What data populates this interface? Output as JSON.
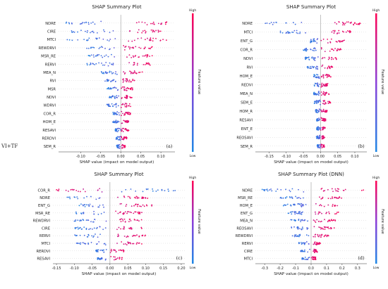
{
  "figure": {
    "side_label": "VI+TF"
  },
  "colors": {
    "low": "#1e88e5",
    "high": "#ff0052",
    "axis": "#333333",
    "zero_line": "#999999",
    "guide": "#cccccc"
  },
  "chart_data": [
    {
      "type": "scatter",
      "title": "SHAP Summary Plot",
      "panel_label": "(a)",
      "xlabel": "SHAP value (impact on model output)",
      "colorbar": {
        "label": "Feature value",
        "high": "High",
        "low": "Low"
      },
      "xlim": [
        -0.155,
        0.135
      ],
      "xticks": [
        -0.1,
        -0.05,
        0.0,
        0.05,
        0.1
      ],
      "xtick_labels": [
        "-0.10",
        "-0.05",
        "0.00",
        "0.05",
        "0.10"
      ],
      "features": [
        {
          "name": "NDRE",
          "neg": [
            -0.14,
            -0.02
          ],
          "pos": [
            0.02,
            0.125
          ]
        },
        {
          "name": "CIRE",
          "neg": [
            -0.13,
            -0.015
          ],
          "pos": [
            0.015,
            0.1
          ]
        },
        {
          "name": "MTCI",
          "neg": [
            -0.135,
            -0.01
          ],
          "pos": [
            0.01,
            0.115
          ]
        },
        {
          "name": "REWDRVI",
          "neg": [
            -0.085,
            -0.01
          ],
          "pos": [
            0.005,
            0.08
          ]
        },
        {
          "name": "MSR_RE",
          "neg": [
            -0.085,
            -0.01
          ],
          "pos": [
            0.005,
            0.08
          ]
        },
        {
          "name": "RERVI",
          "neg": [
            -0.09,
            -0.01
          ],
          "pos": [
            0.005,
            0.075
          ]
        },
        {
          "name": "MEA_N",
          "neg": [
            -0.05,
            -0.005
          ],
          "pos": [
            0.0,
            0.055
          ]
        },
        {
          "name": "RVI",
          "neg": [
            -0.04,
            -0.005
          ],
          "pos": [
            0.0,
            0.035
          ]
        },
        {
          "name": "MSR",
          "neg": [
            -0.035,
            -0.005
          ],
          "pos": [
            0.0,
            0.03
          ]
        },
        {
          "name": "NDVI",
          "neg": [
            -0.03,
            -0.005
          ],
          "pos": [
            0.0,
            0.03
          ]
        },
        {
          "name": "WDRVI",
          "neg": [
            -0.035,
            -0.005
          ],
          "pos": [
            0.0,
            0.025
          ]
        },
        {
          "name": "COR_R",
          "neg": [
            -0.02,
            0.0
          ],
          "pos": [
            0.0,
            0.025
          ]
        },
        {
          "name": "HOM_E",
          "neg": [
            -0.02,
            0.0
          ],
          "pos": [
            0.0,
            0.02
          ]
        },
        {
          "name": "RESAVI",
          "neg": [
            -0.015,
            0.0
          ],
          "pos": [
            0.0,
            0.02
          ]
        },
        {
          "name": "RERDVI",
          "neg": [
            -0.012,
            0.0
          ],
          "pos": [
            0.0,
            0.015
          ]
        },
        {
          "name": "SEM_R",
          "neg": [
            -0.01,
            0.0
          ],
          "pos": [
            0.0,
            0.012
          ]
        }
      ]
    },
    {
      "type": "scatter",
      "title": "SHAP Summary Plot",
      "panel_label": "(b)",
      "xlabel": "SHAP value (impact on model output)",
      "colorbar": {
        "label": "Feature value",
        "high": "High",
        "low": "Low"
      },
      "xlim": [
        -0.19,
        0.135
      ],
      "xticks": [
        -0.15,
        -0.1,
        -0.05,
        0.0,
        0.05,
        0.1
      ],
      "xtick_labels": [
        "-0.15",
        "-0.10",
        "-0.05",
        "0.00",
        "0.05",
        "0.10"
      ],
      "features": [
        {
          "name": "NDRE",
          "neg": [
            -0.17,
            -0.03
          ],
          "pos": [
            0.03,
            0.12
          ]
        },
        {
          "name": "MTCI",
          "neg": [
            -0.12,
            -0.02
          ],
          "pos": [
            0.02,
            0.09
          ]
        },
        {
          "name": "ENT_G",
          "neg": [
            -0.03,
            -0.005
          ],
          "pos": [
            0.0,
            0.075
          ]
        },
        {
          "name": "COR_R",
          "neg": [
            -0.05,
            -0.005
          ],
          "pos": [
            0.0,
            0.06
          ]
        },
        {
          "name": "NDVI",
          "neg": [
            -0.045,
            -0.005
          ],
          "pos": [
            0.0,
            0.05
          ]
        },
        {
          "name": "RVI",
          "neg": [
            -0.04,
            -0.005
          ],
          "pos": [
            0.0,
            0.035
          ]
        },
        {
          "name": "HOM_E",
          "neg": [
            -0.02,
            0.0
          ],
          "pos": [
            0.0,
            0.03
          ]
        },
        {
          "name": "REDVI",
          "neg": [
            -0.02,
            0.0
          ],
          "pos": [
            0.0,
            0.025
          ]
        },
        {
          "name": "MEA_N",
          "neg": [
            -0.02,
            0.0
          ],
          "pos": [
            0.0,
            0.025
          ]
        },
        {
          "name": "SEM_E",
          "neg": [
            -0.02,
            0.0
          ],
          "pos": [
            0.0,
            0.03
          ]
        },
        {
          "name": "HOM_R",
          "neg": [
            -0.015,
            0.0
          ],
          "pos": [
            0.0,
            0.02
          ]
        },
        {
          "name": "RESAVI",
          "neg": [
            -0.015,
            0.0
          ],
          "pos": [
            0.0,
            0.015
          ]
        },
        {
          "name": "ENT_E",
          "neg": [
            -0.012,
            0.0
          ],
          "pos": [
            0.0,
            0.015
          ]
        },
        {
          "name": "REOSAVI",
          "neg": [
            -0.012,
            0.0
          ],
          "pos": [
            0.0,
            0.012
          ]
        },
        {
          "name": "SEM_R",
          "neg": [
            -0.01,
            0.0
          ],
          "pos": [
            0.0,
            0.012
          ]
        }
      ]
    },
    {
      "type": "scatter",
      "title": "SHAP Summary Plot",
      "panel_label": "(c)",
      "xlabel": "SHAP value (impact on model output)",
      "colorbar": {
        "label": "Feature value",
        "high": "High",
        "low": "Low"
      },
      "xlim": [
        -0.16,
        0.21
      ],
      "xticks": [
        -0.15,
        -0.1,
        -0.05,
        0.0,
        0.05,
        0.1,
        0.15,
        0.2
      ],
      "xtick_labels": [
        "-0.15",
        "-0.10",
        "-0.05",
        "0.00",
        "0.05",
        "0.10",
        "0.15",
        "0.20"
      ],
      "features": [
        {
          "name": "COR_R",
          "neg": [
            -0.15,
            -0.02
          ],
          "pos": [
            0.02,
            0.19
          ]
        },
        {
          "name": "NDRE",
          "neg": [
            -0.12,
            -0.02
          ],
          "pos": [
            0.02,
            0.11
          ]
        },
        {
          "name": "ENT_G",
          "neg": [
            -0.09,
            -0.01
          ],
          "pos": [
            0.01,
            0.12
          ]
        },
        {
          "name": "MSR_RE",
          "neg": [
            -0.1,
            -0.01
          ],
          "pos": [
            0.01,
            0.09
          ]
        },
        {
          "name": "REWDRVI",
          "neg": [
            -0.1,
            -0.01
          ],
          "pos": [
            0.01,
            0.09
          ]
        },
        {
          "name": "CIRE",
          "neg": [
            -0.1,
            -0.01
          ],
          "pos": [
            0.01,
            0.09
          ]
        },
        {
          "name": "RERVI",
          "neg": [
            -0.1,
            -0.01
          ],
          "pos": [
            0.01,
            0.1
          ]
        },
        {
          "name": "MTCI",
          "neg": [
            -0.1,
            -0.01
          ],
          "pos": [
            0.01,
            0.09
          ]
        },
        {
          "name": "RERDVI",
          "neg": [
            -0.04,
            -0.005
          ],
          "pos": [
            0.0,
            0.04
          ]
        },
        {
          "name": "RESAVI",
          "neg": [
            -0.035,
            -0.005
          ],
          "pos": [
            0.0,
            0.035
          ]
        }
      ]
    },
    {
      "type": "scatter",
      "title": "SHAP Summary Plot (DNN)",
      "panel_label": "(d)",
      "xlabel": "SHAP value (impact on model output)",
      "colorbar": {
        "label": "Feature value",
        "high": "High",
        "low": "Low"
      },
      "xlim": [
        -0.36,
        0.36
      ],
      "xticks": [
        -0.3,
        -0.2,
        -0.1,
        0.0,
        0.1,
        0.2,
        0.3
      ],
      "xtick_labels": [
        "-0.3",
        "-0.2",
        "-0.1",
        "0.0",
        "0.1",
        "0.2",
        "0.3"
      ],
      "features": [
        {
          "name": "NDRE",
          "neg": [
            -0.32,
            -0.03
          ],
          "pos": [
            0.03,
            0.34
          ]
        },
        {
          "name": "MSR_RE",
          "neg": [
            -0.2,
            -0.02
          ],
          "pos": [
            0.02,
            0.2
          ]
        },
        {
          "name": "HOM_E",
          "neg": [
            -0.18,
            -0.02
          ],
          "pos": [
            0.02,
            0.2
          ]
        },
        {
          "name": "ENT_G",
          "neg": [
            -0.15,
            -0.02
          ],
          "pos": [
            0.02,
            0.18
          ]
        },
        {
          "name": "MEA_N",
          "neg": [
            -0.14,
            -0.01
          ],
          "pos": [
            0.01,
            0.16
          ]
        },
        {
          "name": "REOSAVI",
          "neg": [
            -0.13,
            -0.01
          ],
          "pos": [
            0.01,
            0.15
          ]
        },
        {
          "name": "REWDRVI",
          "neg": [
            -0.12,
            -0.01
          ],
          "pos": [
            0.01,
            0.12
          ]
        },
        {
          "name": "RERVI",
          "neg": [
            -0.08,
            -0.01
          ],
          "pos": [
            0.01,
            0.06
          ]
        },
        {
          "name": "CIRE",
          "neg": [
            -0.07,
            -0.005
          ],
          "pos": [
            0.0,
            0.04
          ]
        },
        {
          "name": "MTCI",
          "neg": [
            -0.06,
            -0.005
          ],
          "pos": [
            0.0,
            0.03
          ]
        }
      ]
    }
  ]
}
